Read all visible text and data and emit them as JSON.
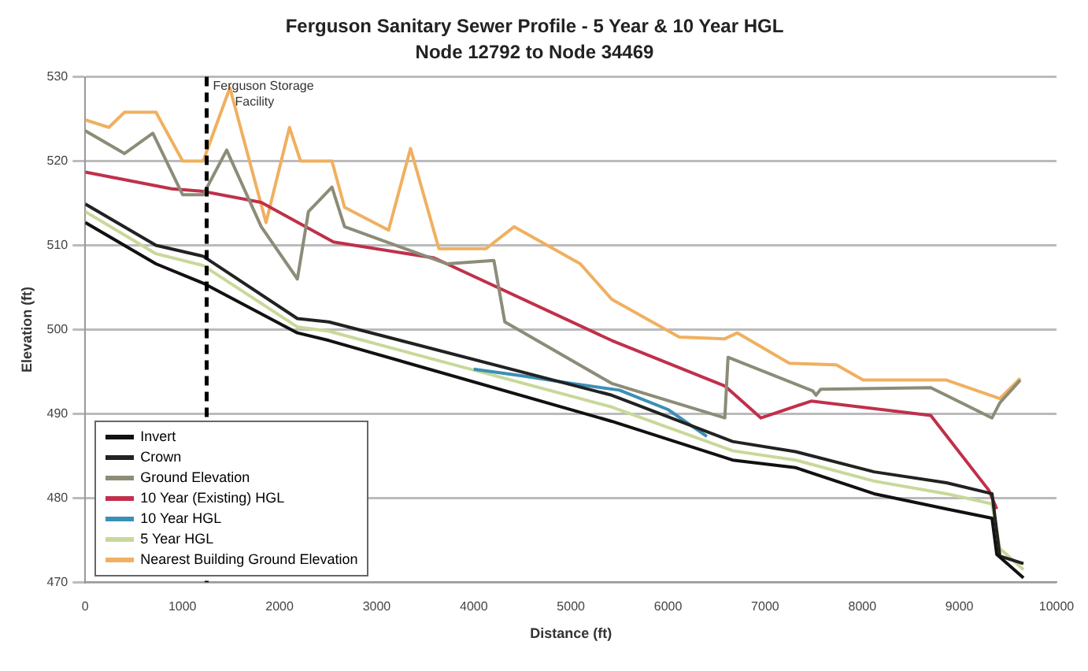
{
  "chart_data": {
    "type": "line",
    "title": "Ferguson Sanitary Sewer Profile - 5 Year & 10 Year HGL",
    "subtitle": "Node 12792 to Node 34469",
    "xlabel": "Distance (ft)",
    "ylabel": "Elevation (ft)",
    "xlim": [
      0,
      10000
    ],
    "xticks": [
      0,
      1000,
      2000,
      3000,
      4000,
      5000,
      6000,
      7000,
      8000,
      9000,
      10000
    ],
    "ylim": [
      470,
      530
    ],
    "yticks": [
      470,
      480,
      490,
      500,
      510,
      520,
      530
    ],
    "grid": "y",
    "legend": "bottom left",
    "marker": "none",
    "line_style": "solid",
    "ref_lines": [
      {
        "axis": "x",
        "value": 1250,
        "label": "Ferguson Storage Facility",
        "color": "#000000",
        "line_style": "dashed"
      }
    ],
    "series": [
      {
        "name": "Invert",
        "color": "#111111",
        "x": [
          0,
          728,
          1214,
          2184,
          2508,
          5420,
          6666,
          7313,
          8122,
          8867,
          9336,
          9385,
          9660
        ],
        "values": [
          512.7,
          507.8,
          505.5,
          499.6,
          498.7,
          489.1,
          484.5,
          483.6,
          480.5,
          478.7,
          477.6,
          473.3,
          470.5
        ]
      },
      {
        "name": "Crown",
        "color": "#222222",
        "x": [
          0,
          728,
          1214,
          2184,
          2508,
          5420,
          6666,
          7313,
          8122,
          8867,
          9336,
          9417,
          9660
        ],
        "values": [
          514.9,
          510,
          508.7,
          501.3,
          500.9,
          492.2,
          486.7,
          485.5,
          483.1,
          481.8,
          480.5,
          473.1,
          472.2
        ]
      },
      {
        "name": "Ground Elevation",
        "color": "#8c8c78",
        "x": [
          0,
          405,
          696,
          1003,
          1214,
          1456,
          1812,
          2184,
          2298,
          2540,
          2670,
          3721,
          4207,
          4320,
          5420,
          6585,
          6618,
          7491,
          7524,
          7572,
          8705,
          9336,
          9417,
          9627
        ],
        "values": [
          523.6,
          520.9,
          523.3,
          516,
          516,
          521.3,
          512.2,
          506,
          514,
          516.9,
          512.2,
          507.8,
          508.2,
          500.9,
          493.6,
          489.5,
          496.7,
          492.7,
          492.2,
          492.9,
          493.1,
          489.5,
          491.3,
          494
        ]
      },
      {
        "name": "10 Year (Existing) HGL",
        "color": "#c0304a",
        "x": [
          0,
          890,
          1214,
          1812,
          2556,
          3592,
          5420,
          6585,
          6957,
          7475,
          8705,
          9304,
          9385
        ],
        "values": [
          518.7,
          516.7,
          516.4,
          515.1,
          510.4,
          508.5,
          498.7,
          493.3,
          489.5,
          491.5,
          489.8,
          480.9,
          478.7
        ]
      },
      {
        "name": "10 Year HGL",
        "color": "#3a8fb7",
        "x": [
          4000,
          4500,
          5000,
          5500,
          6000,
          6400
        ],
        "values": [
          495.3,
          494.5,
          493.6,
          492.8,
          490.5,
          487.3
        ]
      },
      {
        "name": "5 Year HGL",
        "color": "#c8d89a",
        "x": [
          0,
          728,
          1214,
          2184,
          2508,
          5420,
          6666,
          7313,
          8122,
          8867,
          9336,
          9417,
          9660
        ],
        "values": [
          514,
          509,
          507.6,
          500.3,
          499.8,
          490.8,
          485.6,
          484.5,
          482,
          480.5,
          479.3,
          474,
          471.5
        ]
      },
      {
        "name": "Nearest Building Ground Elevation",
        "color": "#f0b060",
        "x": [
          0,
          243,
          405,
          728,
          1003,
          1214,
          1489,
          1861,
          2103,
          2217,
          2540,
          2670,
          3123,
          3349,
          3641,
          4126,
          4417,
          5097,
          5420,
          6116,
          6585,
          6715,
          7249,
          7734,
          8009,
          8867,
          9417,
          9627
        ],
        "values": [
          524.9,
          524,
          525.8,
          525.8,
          520,
          520,
          528.7,
          512.7,
          524,
          520,
          520,
          514.5,
          511.8,
          521.5,
          509.6,
          509.6,
          512.2,
          507.8,
          503.6,
          499.1,
          498.9,
          499.6,
          496,
          495.8,
          494,
          494,
          491.8,
          494.2
        ]
      }
    ]
  }
}
